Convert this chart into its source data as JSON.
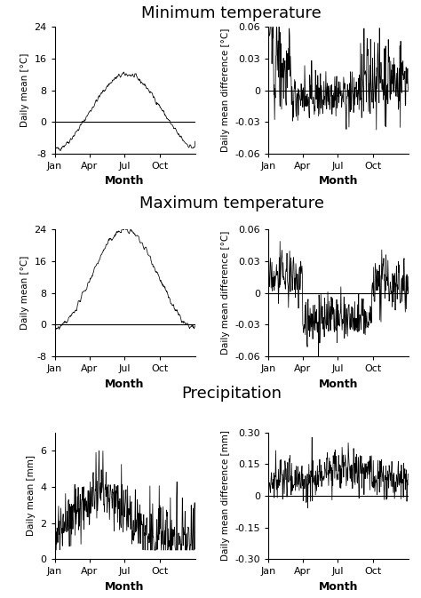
{
  "title_min": "Minimum temperature",
  "title_max": "Maximum temperature",
  "title_prec": "Precipitation",
  "xlabel": "Month",
  "ylabel_mean_temp": "Daily mean [°C]",
  "ylabel_diff_temp": "Daily mean difference [°C]",
  "ylabel_mean_prec": "Daily mean [mm]",
  "ylabel_diff_prec": "Daily mean difference [mm]",
  "xtick_labels": [
    "Jan",
    "Apr",
    "Jul",
    "Oct"
  ],
  "xtick_pos": [
    0,
    90,
    181,
    273
  ],
  "n_days": 365,
  "ylim_min_mean": [
    -8,
    24
  ],
  "ylim_min_diff": [
    -0.06,
    0.06
  ],
  "ylim_max_mean": [
    -8,
    24
  ],
  "ylim_max_diff": [
    -0.06,
    0.06
  ],
  "ylim_prec_mean": [
    0,
    7
  ],
  "ylim_prec_diff": [
    -0.3,
    0.3
  ],
  "yticks_min_mean": [
    -8,
    0,
    8,
    16,
    24
  ],
  "yticks_min_diff": [
    -0.06,
    -0.03,
    0.0,
    0.03,
    0.06
  ],
  "yticks_max_mean": [
    -8,
    0,
    8,
    16,
    24
  ],
  "yticks_max_diff": [
    -0.06,
    -0.03,
    0.0,
    0.03,
    0.06
  ],
  "yticks_prec_mean": [
    0,
    2,
    4,
    6
  ],
  "yticks_prec_diff": [
    -0.3,
    -0.15,
    0.0,
    0.15,
    0.3
  ],
  "background": "#ffffff",
  "line_color": "#000000",
  "hline_color": "#000000",
  "title_fontsize": 13,
  "label_fontsize": 7.5,
  "tick_fontsize": 8,
  "xlabel_fontsize": 9,
  "seed": 42
}
